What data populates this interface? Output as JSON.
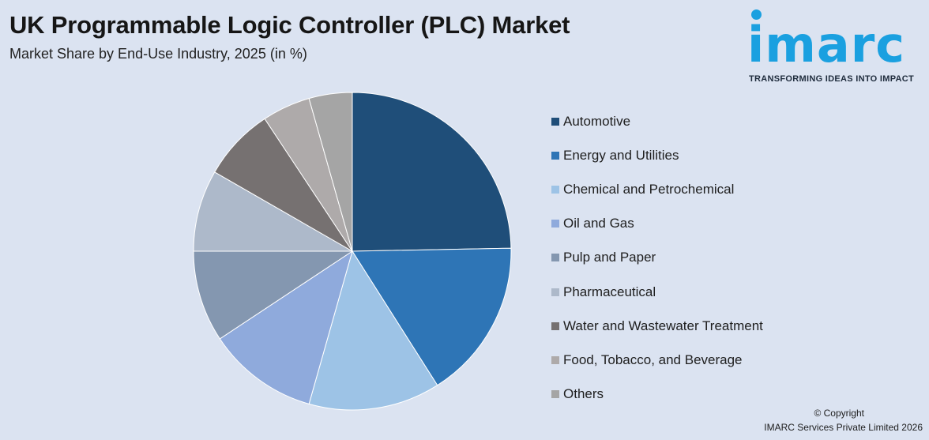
{
  "title": "UK Programmable Logic Controller (PLC) Market",
  "subtitle": "Market Share by End-Use Industry, 2025 (in %)",
  "logo": {
    "text": "imarc",
    "tagline": "TRANSFORMING IDEAS INTO IMPACT"
  },
  "chart_data": {
    "type": "pie",
    "title": "UK Programmable Logic Controller (PLC) Market",
    "subtitle": "Market Share by End-Use Industry, 2025 (in %)",
    "legend_placement": "right",
    "start_angle": "12 o'clock",
    "direction": "clockwise",
    "slices": [
      {
        "label": "Automotive",
        "value": 24.7,
        "color": "#1f4e79"
      },
      {
        "label": "Energy and Utilities",
        "value": 16.3,
        "color": "#2e75b6"
      },
      {
        "label": "Chemical and Petrochemical",
        "value": 13.4,
        "color": "#9dc3e6"
      },
      {
        "label": "Oil and Gas",
        "value": 11.3,
        "color": "#8faadc"
      },
      {
        "label": "Pulp and Paper",
        "value": 9.3,
        "color": "#8497b0"
      },
      {
        "label": "Pharmaceutical",
        "value": 8.3,
        "color": "#adb9ca"
      },
      {
        "label": "Water and Wastewater Treatment",
        "value": 7.4,
        "color": "#767171"
      },
      {
        "label": "Food, Tobacco, and Beverage",
        "value": 4.9,
        "color": "#aeaaaa"
      },
      {
        "label": "Others",
        "value": 4.4,
        "color": "#a5a5a5"
      }
    ]
  },
  "footer": {
    "copyright": "© Copyright",
    "company": "IMARC Services Private Limited 2026"
  }
}
